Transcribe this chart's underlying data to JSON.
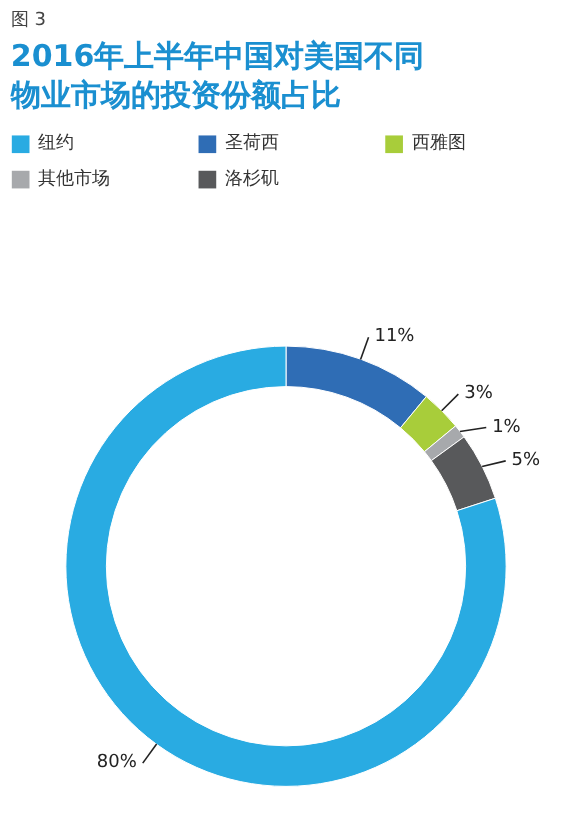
{
  "chart_data": {
    "type": "donut",
    "title": "2016年上半年中国对美国不同物业市场的投资份额占比",
    "annotations": [
      "图 3"
    ],
    "categories": [
      "圣荷西",
      "西雅图",
      "其他市场",
      "洛杉矶",
      "纽约"
    ],
    "values": [
      11,
      3,
      1,
      5,
      80
    ],
    "value_labels": [
      "11%",
      "3%",
      "1%",
      "5%",
      "80%"
    ],
    "colors": [
      "#2f6db5",
      "#a8cd3a",
      "#a7a9ac",
      "#58595b",
      "#29abe2"
    ],
    "legend": "top"
  }
}
